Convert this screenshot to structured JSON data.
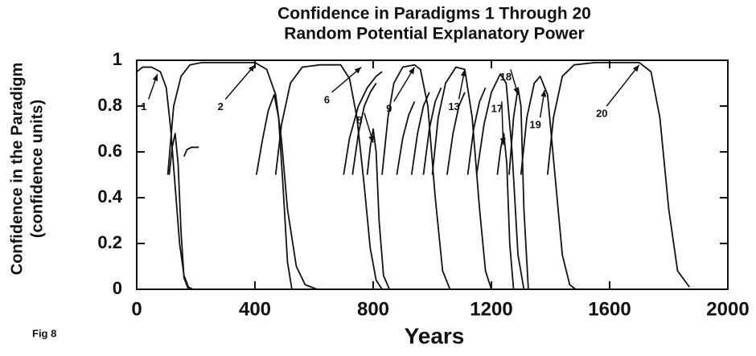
{
  "chart_data": {
    "type": "line",
    "title": "Confidence in Paradigms 1 Through 20",
    "subtitle": "Random Potential Explanatory Power",
    "x_label": "Years",
    "y_label": "Confidence in the Paradigm",
    "y_label_units": "(confidence units)",
    "figure_label": "Fig 8",
    "xlim": [
      0,
      2000
    ],
    "xticks": [
      0,
      400,
      800,
      1200,
      1600,
      2000
    ],
    "ylim": [
      0,
      1
    ],
    "yticks": [
      0,
      0.2,
      0.4,
      0.6,
      0.8,
      1
    ],
    "color": "#111111",
    "annotations": [
      "1",
      "2",
      "6",
      "8",
      "9",
      "13",
      "17",
      "18",
      "19",
      "20"
    ],
    "series": [
      {
        "x": [
          0,
          20,
          50,
          80,
          100,
          115,
          130,
          145,
          160,
          175,
          190
        ],
        "values": [
          0.95,
          0.97,
          0.97,
          0.95,
          0.88,
          0.7,
          0.45,
          0.2,
          0.06,
          0.01,
          0
        ]
      },
      {
        "x": [
          105,
          125,
          150,
          180,
          220,
          300,
          400,
          440,
          470,
          490,
          510,
          540,
          570,
          610
        ],
        "values": [
          0.5,
          0.8,
          0.93,
          0.98,
          0.99,
          0.99,
          0.99,
          0.96,
          0.85,
          0.65,
          0.35,
          0.1,
          0.02,
          0
        ]
      },
      {
        "x": [
          110,
          120,
          130,
          140,
          150,
          160,
          175
        ],
        "values": [
          0.5,
          0.62,
          0.68,
          0.55,
          0.25,
          0.05,
          0
        ]
      },
      {
        "x": [
          160,
          170,
          185,
          200,
          210
        ],
        "values": [
          0.58,
          0.61,
          0.62,
          0.62,
          0.62
        ]
      },
      {
        "x": [
          405,
          425,
          445,
          465,
          480,
          495,
          510,
          525
        ],
        "values": [
          0.5,
          0.65,
          0.78,
          0.85,
          0.75,
          0.45,
          0.12,
          0
        ]
      },
      {
        "x": [
          470,
          490,
          520,
          560,
          620,
          690,
          720,
          745,
          770,
          790,
          810,
          830
        ],
        "values": [
          0.5,
          0.72,
          0.9,
          0.97,
          0.98,
          0.98,
          0.92,
          0.75,
          0.45,
          0.18,
          0.04,
          0
        ]
      },
      {
        "x": [
          700,
          720,
          750,
          780,
          810,
          830
        ],
        "values": [
          0.5,
          0.66,
          0.8,
          0.88,
          0.93,
          0.95
        ]
      },
      {
        "x": [
          730,
          750,
          770,
          790,
          810
        ],
        "values": [
          0.5,
          0.68,
          0.8,
          0.86,
          0.9
        ]
      },
      {
        "x": [
          780,
          790,
          800,
          810,
          820,
          835,
          855
        ],
        "values": [
          0.5,
          0.62,
          0.7,
          0.6,
          0.3,
          0.06,
          0
        ]
      },
      {
        "x": [
          830,
          850,
          870,
          900,
          940,
          960,
          985,
          1010,
          1035,
          1060
        ],
        "values": [
          0.5,
          0.75,
          0.9,
          0.97,
          0.98,
          0.96,
          0.8,
          0.4,
          0.08,
          0
        ]
      },
      {
        "x": [
          880,
          900,
          920,
          940
        ],
        "values": [
          0.5,
          0.66,
          0.76,
          0.82
        ]
      },
      {
        "x": [
          930,
          950,
          970,
          990
        ],
        "values": [
          0.5,
          0.68,
          0.8,
          0.86
        ]
      },
      {
        "x": [
          970,
          990,
          1010,
          1030
        ],
        "values": [
          0.5,
          0.7,
          0.82,
          0.88
        ]
      },
      {
        "x": [
          1000,
          1020,
          1045,
          1080,
          1110,
          1135,
          1160,
          1180,
          1200
        ],
        "values": [
          0.5,
          0.75,
          0.9,
          0.97,
          0.96,
          0.75,
          0.35,
          0.08,
          0
        ]
      },
      {
        "x": [
          1050,
          1070,
          1090,
          1110
        ],
        "values": [
          0.5,
          0.68,
          0.8,
          0.86
        ]
      },
      {
        "x": [
          1120,
          1140,
          1160,
          1180
        ],
        "values": [
          0.5,
          0.7,
          0.82,
          0.88
        ]
      },
      {
        "x": [
          1150,
          1175,
          1200,
          1230,
          1250,
          1270,
          1290,
          1310
        ],
        "values": [
          0.5,
          0.72,
          0.86,
          0.94,
          0.9,
          0.6,
          0.15,
          0
        ]
      },
      {
        "x": [
          1220,
          1232,
          1242,
          1252,
          1262,
          1275
        ],
        "values": [
          0.5,
          0.62,
          0.68,
          0.55,
          0.2,
          0
        ]
      },
      {
        "x": [
          1260,
          1275,
          1290,
          1300,
          1310,
          1325
        ],
        "values": [
          0.5,
          0.75,
          0.88,
          0.8,
          0.35,
          0
        ]
      },
      {
        "x": [
          1300,
          1320,
          1345,
          1365,
          1390,
          1415,
          1440,
          1465,
          1485
        ],
        "values": [
          0.5,
          0.75,
          0.9,
          0.93,
          0.85,
          0.5,
          0.15,
          0.02,
          0
        ]
      },
      {
        "x": [
          1390,
          1410,
          1440,
          1480,
          1550,
          1700,
          1740,
          1770,
          1800,
          1830,
          1870
        ],
        "values": [
          0.5,
          0.75,
          0.93,
          0.98,
          0.99,
          0.99,
          0.95,
          0.75,
          0.35,
          0.08,
          0.01
        ]
      }
    ]
  }
}
